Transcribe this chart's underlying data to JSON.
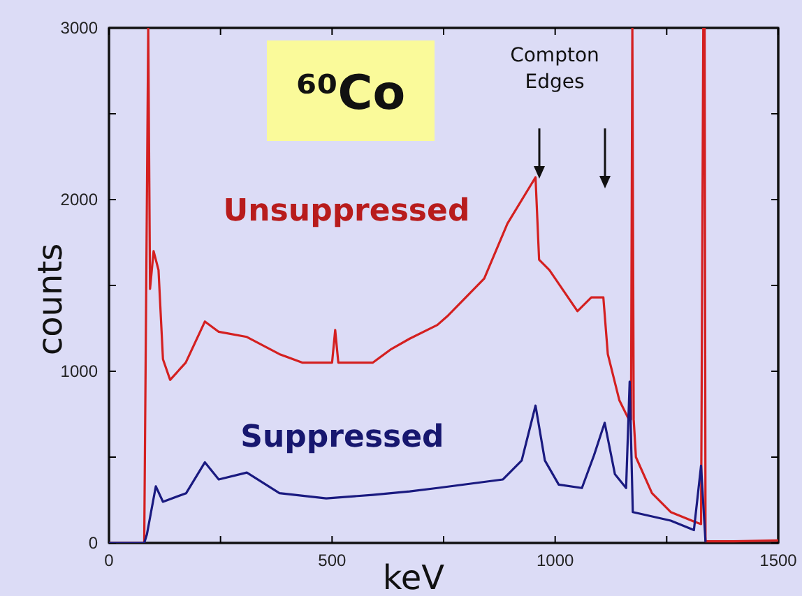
{
  "chart_data": {
    "type": "line",
    "title": "⁶⁰Co",
    "xlabel": "keV",
    "ylabel": "counts",
    "annotations": [
      "Compton Edges"
    ],
    "xlim": [
      0,
      1500
    ],
    "ylim": [
      0,
      3000
    ],
    "xticks": [
      0,
      {
        "value": 250,
        "label": null
      },
      500,
      {
        "value": 750,
        "label": null
      },
      1000,
      {
        "value": 1250,
        "label": null
      },
      1500
    ],
    "yticks": [
      0,
      {
        "value": 500,
        "label": null
      },
      1000,
      {
        "value": 1500,
        "label": null
      },
      2000,
      {
        "value": 2500,
        "label": null
      },
      3000
    ],
    "grid": false,
    "legend": false,
    "marker": "none",
    "line_style": "solid",
    "series": [
      {
        "name": "Unsuppressed",
        "color": "#d42020",
        "x": [
          0,
          79,
          88,
          92,
          100,
          111,
          121,
          137,
          172,
          215,
          246,
          309,
          382,
          434,
          500,
          507,
          514,
          591,
          633,
          674,
          736,
          758,
          841,
          893,
          956,
          964,
          987,
          1050,
          1081,
          1108,
          1118,
          1144,
          1165,
          1170,
          1173,
          1176,
          1181,
          1217,
          1259,
          1311,
          1327,
          1332,
          1335,
          1337,
          1400,
          1500
        ],
        "values": [
          0,
          0,
          3000,
          1480,
          1700,
          1590,
          1070,
          950,
          1050,
          1290,
          1230,
          1200,
          1100,
          1050,
          1050,
          1240,
          1050,
          1050,
          1130,
          1190,
          1270,
          1320,
          1540,
          1860,
          2130,
          1650,
          1590,
          1350,
          1430,
          1430,
          1100,
          830,
          720,
          720,
          3000,
          720,
          500,
          290,
          180,
          125,
          110,
          3000,
          3000,
          10,
          10,
          15
        ]
      },
      {
        "name": "Suppressed",
        "color": "#1a1a80",
        "x": [
          0,
          79,
          85,
          105,
          121,
          173,
          215,
          246,
          309,
          382,
          487,
          591,
          674,
          736,
          883,
          925,
          956,
          977,
          1008,
          1060,
          1087,
          1111,
          1134,
          1159,
          1167,
          1174,
          1259,
          1311,
          1327,
          1337
        ],
        "values": [
          0,
          0,
          50,
          330,
          240,
          290,
          470,
          370,
          410,
          290,
          260,
          280,
          300,
          320,
          370,
          480,
          800,
          480,
          340,
          320,
          510,
          700,
          400,
          320,
          940,
          180,
          130,
          75,
          450,
          5
        ]
      }
    ]
  }
}
